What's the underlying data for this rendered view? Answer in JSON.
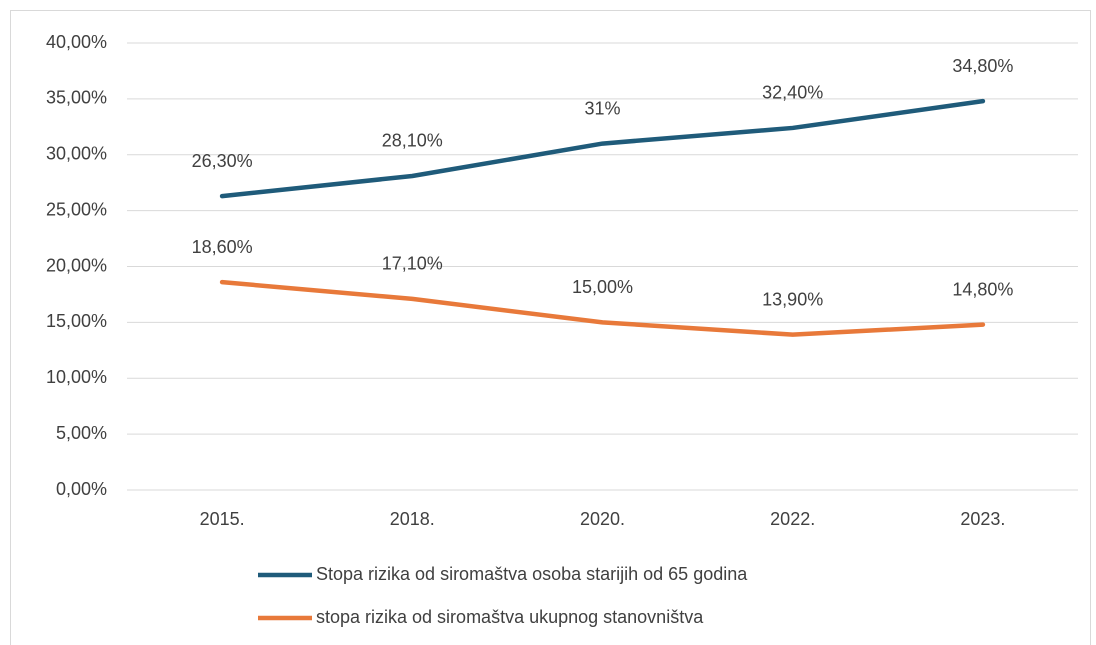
{
  "chart_data": {
    "type": "line",
    "categories": [
      "2015.",
      "2018.",
      "2020.",
      "2022.",
      "2023."
    ],
    "series": [
      {
        "name": "Stopa rizika od siromaštva osoba starijih od 65 godina",
        "color": "#1f5b7a",
        "values": [
          26.3,
          28.1,
          31,
          32.4,
          34.8
        ],
        "value_labels": [
          "26,30%",
          "28,10%",
          "31%",
          "32,40%",
          "34,80%"
        ]
      },
      {
        "name": "stopa rizika od siromaštva ukupnog stanovništva",
        "color": "#e8793a",
        "values": [
          18.6,
          17.1,
          15,
          13.9,
          14.8
        ],
        "value_labels": [
          "18,60%",
          "17,10%",
          "15,00%",
          "13,90%",
          "14,80%"
        ]
      }
    ],
    "ylim": [
      0,
      40
    ],
    "yticks": [
      {
        "value": 0,
        "label": "0,00%"
      },
      {
        "value": 5,
        "label": "5,00%"
      },
      {
        "value": 10,
        "label": "10,00%"
      },
      {
        "value": 15,
        "label": "15,00%"
      },
      {
        "value": 20,
        "label": "20,00%"
      },
      {
        "value": 25,
        "label": "25,00%"
      },
      {
        "value": 30,
        "label": "30,00%"
      },
      {
        "value": 35,
        "label": "35,00%"
      },
      {
        "value": 40,
        "label": "40,00%"
      }
    ],
    "grid": true,
    "legend": "bottom"
  }
}
